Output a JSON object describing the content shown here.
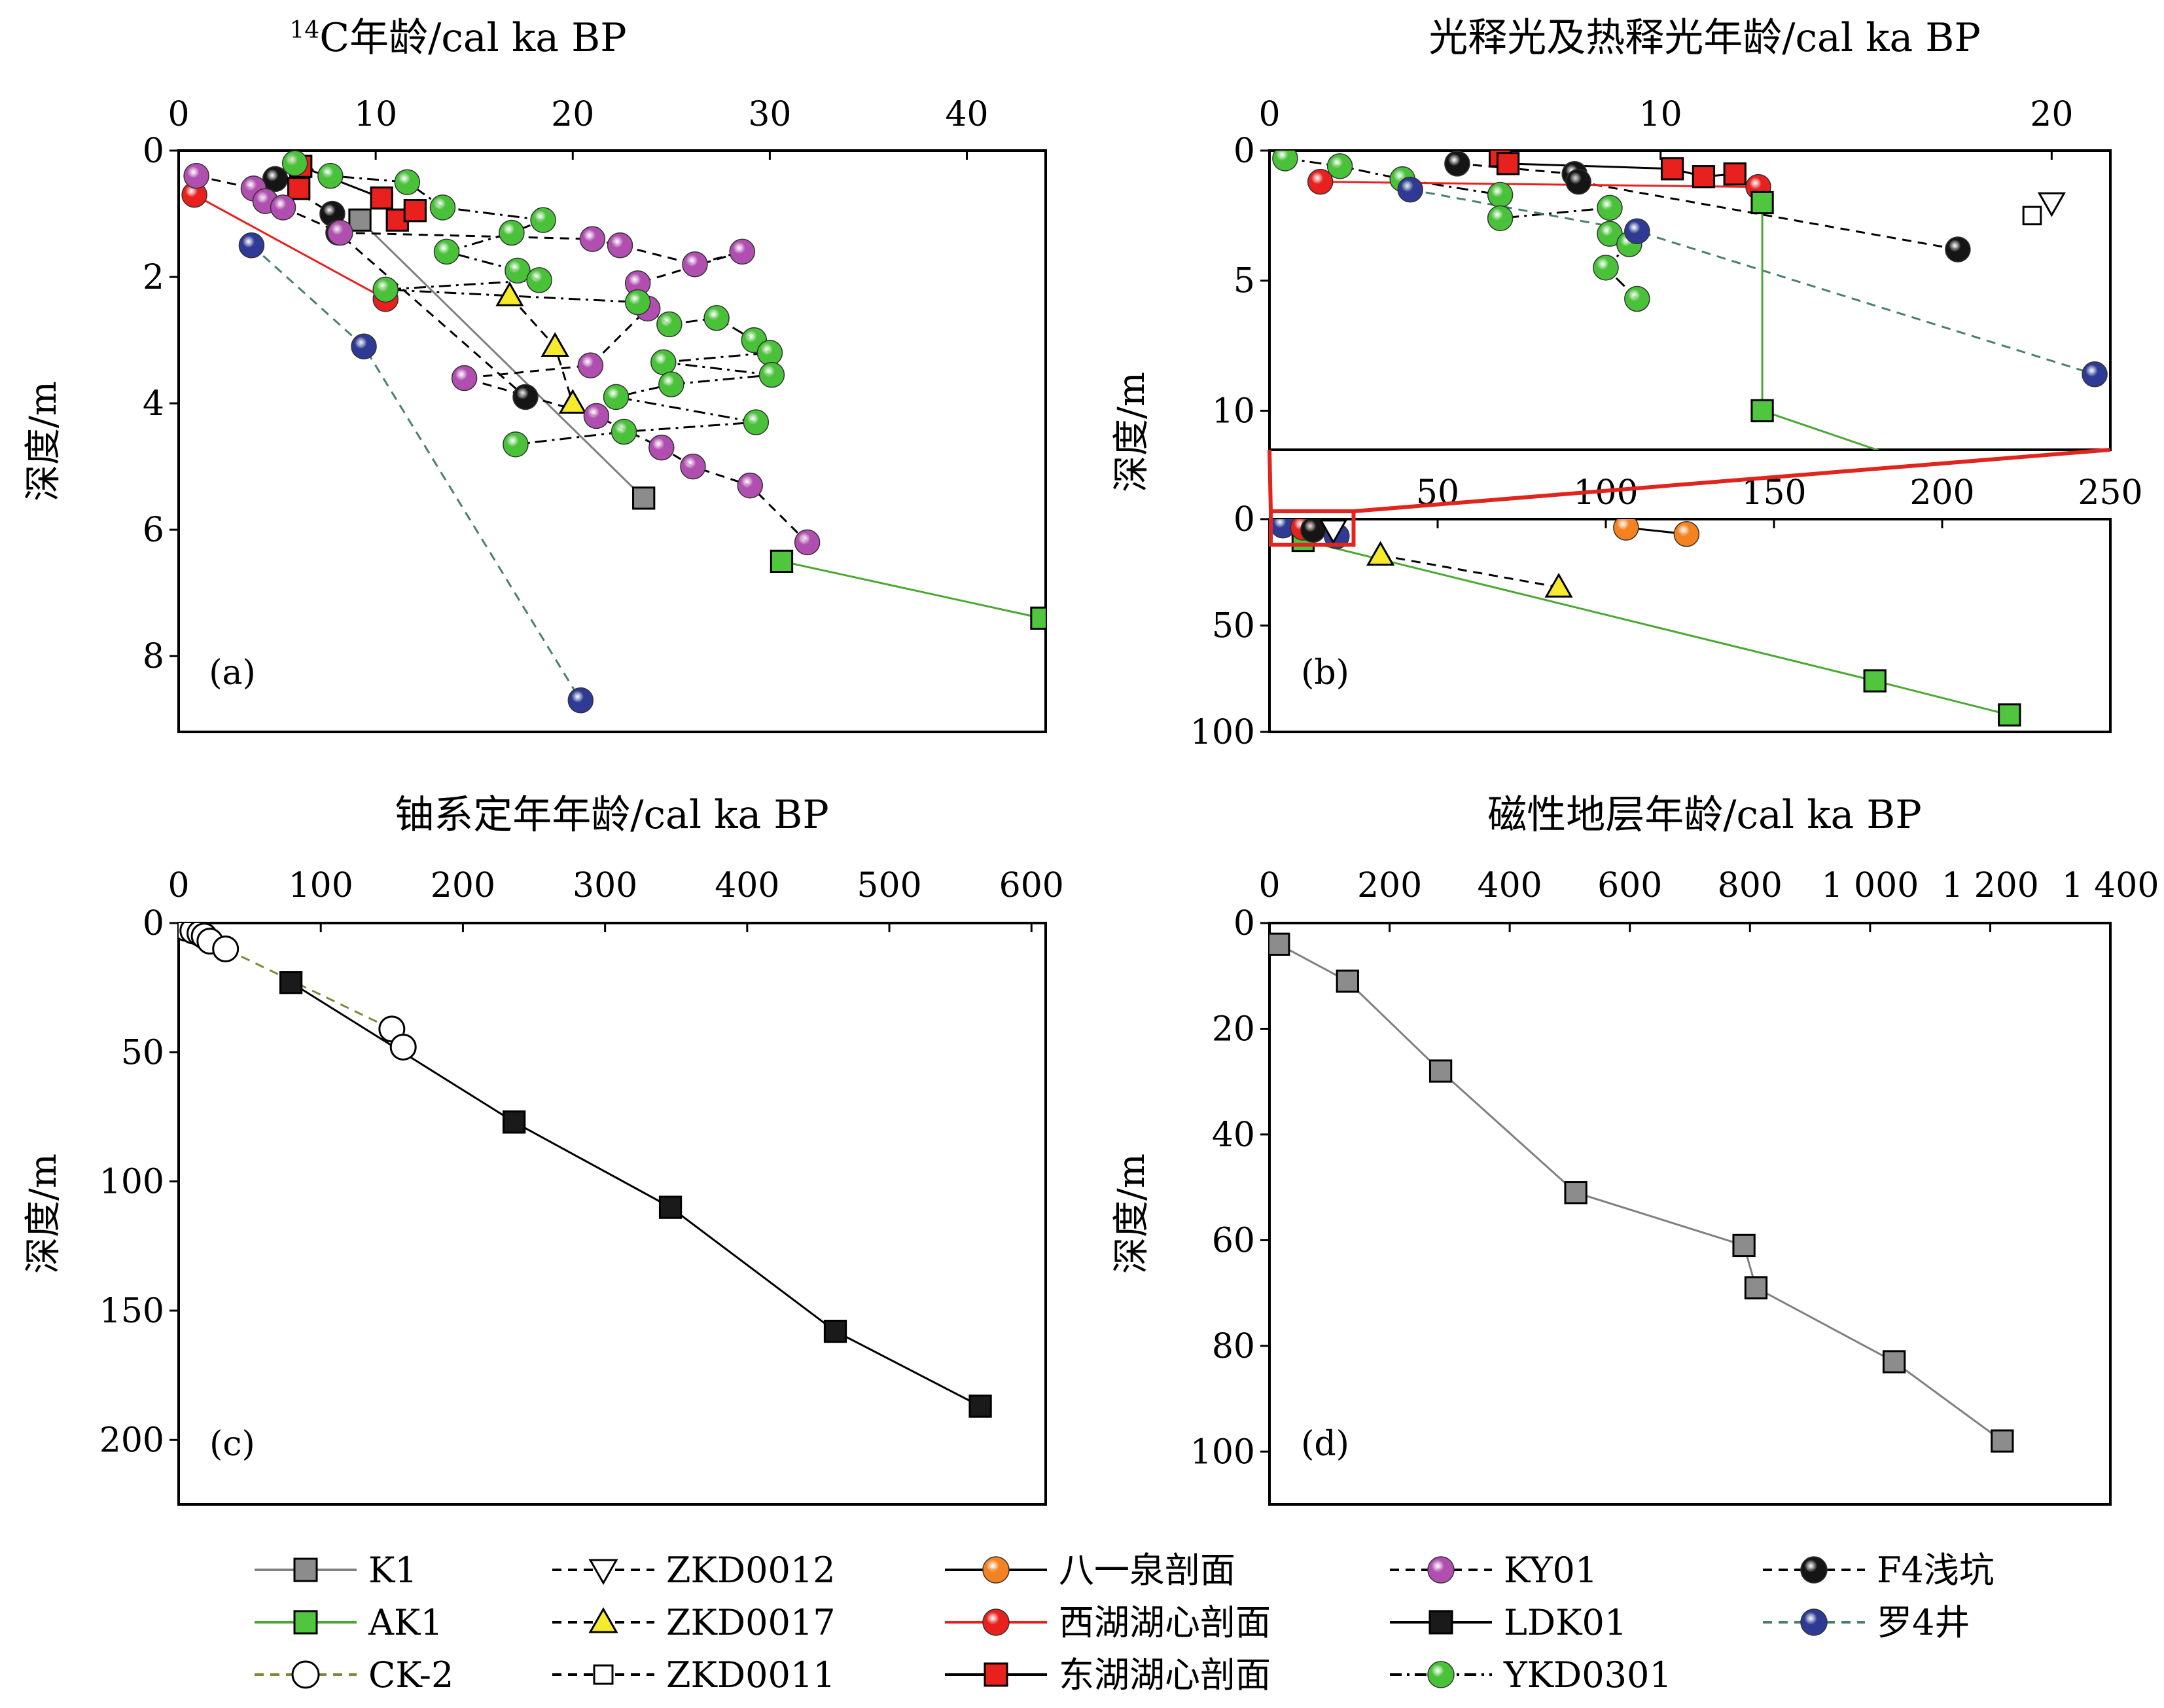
{
  "chart_data": [
    {
      "id": "a",
      "type": "scatter",
      "title_sup": "14",
      "title": "C年龄/cal ka BP",
      "ylabel": "深度/m",
      "panel_label": "(a)",
      "xlim": [
        0,
        44
      ],
      "ylim": [
        0,
        9.2
      ],
      "xticks": [
        "0",
        "10",
        "20",
        "30",
        "40"
      ],
      "xtick_values": [
        0,
        10,
        20,
        30,
        40
      ],
      "yticks": [
        "0",
        "2",
        "4",
        "6",
        "8"
      ],
      "ytick_values": [
        0,
        2,
        4,
        6,
        8
      ],
      "series": [
        {
          "name": "K1",
          "points": [
            [
              9.2,
              1.1
            ],
            [
              23.6,
              5.5
            ]
          ]
        },
        {
          "name": "AK1",
          "points": [
            [
              30.6,
              6.5
            ],
            [
              43.8,
              7.4
            ]
          ]
        },
        {
          "name": "F4浅坑",
          "points": [
            [
              4.9,
              0.45
            ],
            [
              7.8,
              1.0
            ],
            [
              8.1,
              1.3
            ],
            [
              17.6,
              3.9
            ]
          ]
        },
        {
          "name": "西湖湖心剖面",
          "points": [
            [
              0.8,
              0.7
            ],
            [
              10.5,
              2.35
            ]
          ]
        },
        {
          "name": "东湖湖心剖面",
          "points": [
            [
              6.1,
              0.6
            ],
            [
              6.2,
              0.25
            ],
            [
              10.3,
              0.75
            ],
            [
              11.1,
              1.1
            ],
            [
              12.0,
              0.95
            ]
          ]
        },
        {
          "name": "罗4井",
          "points": [
            [
              3.7,
              1.5
            ],
            [
              9.4,
              3.1
            ],
            [
              20.4,
              8.7
            ]
          ]
        },
        {
          "name": "ZKD0017",
          "points": [
            [
              16.8,
              2.3
            ],
            [
              19.1,
              3.1
            ],
            [
              20.0,
              4.0
            ]
          ]
        },
        {
          "name": "KY01",
          "points": [
            [
              0.9,
              0.4
            ],
            [
              3.8,
              0.6
            ],
            [
              4.4,
              0.8
            ],
            [
              5.3,
              0.9
            ],
            [
              8.2,
              1.3
            ],
            [
              21.0,
              1.4
            ],
            [
              22.4,
              1.5
            ],
            [
              26.2,
              1.8
            ],
            [
              28.6,
              1.6
            ],
            [
              23.3,
              2.1
            ],
            [
              23.8,
              2.5
            ],
            [
              20.9,
              3.4
            ],
            [
              14.5,
              3.6
            ],
            [
              21.2,
              4.2
            ],
            [
              24.5,
              4.7
            ],
            [
              26.1,
              5.0
            ],
            [
              29.0,
              5.3
            ],
            [
              31.9,
              6.2
            ]
          ]
        },
        {
          "name": "YKD0301",
          "points": [
            [
              5.9,
              0.2
            ],
            [
              7.7,
              0.4
            ],
            [
              11.6,
              0.5
            ],
            [
              13.4,
              0.9
            ],
            [
              18.5,
              1.1
            ],
            [
              16.9,
              1.3
            ],
            [
              13.6,
              1.6
            ],
            [
              17.2,
              1.9
            ],
            [
              18.3,
              2.05
            ],
            [
              10.5,
              2.2
            ],
            [
              23.3,
              2.4
            ],
            [
              24.9,
              2.75
            ],
            [
              27.3,
              2.65
            ],
            [
              29.2,
              3.0
            ],
            [
              30.0,
              3.2
            ],
            [
              24.6,
              3.35
            ],
            [
              30.1,
              3.55
            ],
            [
              25.0,
              3.7
            ],
            [
              22.2,
              3.9
            ],
            [
              29.3,
              4.3
            ],
            [
              22.6,
              4.45
            ],
            [
              17.1,
              4.65
            ]
          ]
        }
      ]
    },
    {
      "id": "b-upper",
      "type": "scatter",
      "title": "光释光及热释光年龄/cal ka BP",
      "ylabel": "深度/m",
      "xlim": [
        0,
        21.5
      ],
      "ylim": [
        0,
        11.5
      ],
      "xticks": [
        "0",
        "10",
        "20"
      ],
      "xtick_values": [
        0,
        10,
        20
      ],
      "yticks": [
        "0",
        "5",
        "10"
      ],
      "ytick_values": [
        0,
        5,
        10
      ],
      "series": [
        {
          "name": "YKD0301",
          "points": [
            [
              0.4,
              0.3
            ],
            [
              1.8,
              0.6
            ],
            [
              3.4,
              1.1
            ],
            [
              5.9,
              1.7
            ],
            [
              5.9,
              2.6
            ],
            [
              8.7,
              2.2
            ],
            [
              8.7,
              3.2
            ],
            [
              9.2,
              3.6
            ],
            [
              8.6,
              4.5
            ],
            [
              9.4,
              5.7
            ]
          ]
        },
        {
          "name": "F4浅坑",
          "points": [
            [
              4.8,
              0.5
            ],
            [
              7.8,
              0.9
            ],
            [
              7.9,
              1.2
            ],
            [
              17.6,
              3.8
            ]
          ]
        },
        {
          "name": "东湖湖心剖面",
          "points": [
            [
              5.9,
              0.2
            ],
            [
              6.1,
              0.5
            ],
            [
              10.3,
              0.7
            ],
            [
              11.1,
              1.0
            ],
            [
              11.9,
              0.9
            ]
          ]
        },
        {
          "name": "西湖湖心剖面",
          "points": [
            [
              1.3,
              1.2
            ],
            [
              12.5,
              1.4
            ]
          ]
        },
        {
          "name": "罗4井",
          "points": [
            [
              3.6,
              1.5
            ],
            [
              9.4,
              3.1
            ],
            [
              21.1,
              8.6
            ]
          ]
        },
        {
          "name": "AK1",
          "points": [
            [
              12.6,
              2.0
            ],
            [
              12.6,
              10.0
            ],
            [
              16.5,
              12.0
            ]
          ]
        },
        {
          "name": "ZKD0011",
          "points": [
            [
              19.5,
              2.5
            ]
          ]
        },
        {
          "name": "ZKD0012",
          "points": [
            [
              20.0,
              2.0
            ]
          ]
        }
      ]
    },
    {
      "id": "b-lower",
      "type": "scatter",
      "panel_label": "(b)",
      "xlim": [
        0,
        250
      ],
      "ylim": [
        0,
        100
      ],
      "xticks": [
        "50",
        "100",
        "150",
        "200",
        "250"
      ],
      "xtick_values": [
        50,
        100,
        150,
        200,
        250
      ],
      "yticks": [
        "0",
        "50",
        "100"
      ],
      "ytick_values": [
        0,
        50,
        100
      ],
      "series": [
        {
          "name": "AK1",
          "points": [
            [
              10,
              10
            ],
            [
              180,
              76
            ],
            [
              220,
              92
            ]
          ]
        },
        {
          "name": "ZKD0017",
          "points": [
            [
              33,
              17
            ],
            [
              86,
              32
            ]
          ]
        },
        {
          "name": "八一泉剖面",
          "points": [
            [
              106,
              4
            ],
            [
              124,
              7
            ]
          ]
        },
        {
          "name": "罗4井",
          "points": [
            [
              4,
              3
            ],
            [
              20,
              8
            ]
          ]
        },
        {
          "name": "西湖湖心剖面",
          "points": [
            [
              10,
              4
            ]
          ]
        },
        {
          "name": "F4浅坑",
          "points": [
            [
              13,
              5
            ]
          ]
        },
        {
          "name": "ZKD0012",
          "points": [
            [
              19,
              5
            ]
          ]
        }
      ]
    },
    {
      "id": "c",
      "type": "scatter",
      "title": "铀系定年年龄/cal ka BP",
      "ylabel": "深度/m",
      "panel_label": "(c)",
      "xlim": [
        0,
        610
      ],
      "ylim": [
        0,
        225
      ],
      "xticks": [
        "0",
        "100",
        "200",
        "300",
        "400",
        "500",
        "600"
      ],
      "xtick_values": [
        0,
        100,
        200,
        300,
        400,
        500,
        600
      ],
      "yticks": [
        "0",
        "50",
        "100",
        "150",
        "200"
      ],
      "ytick_values": [
        0,
        50,
        100,
        150,
        200
      ],
      "series": [
        {
          "name": "CK-2",
          "points": [
            [
              5,
              2
            ],
            [
              10,
              3
            ],
            [
              15,
              4
            ],
            [
              18,
              5
            ],
            [
              22,
              7
            ],
            [
              33,
              10
            ],
            [
              150,
              41
            ],
            [
              158,
              48
            ]
          ]
        },
        {
          "name": "LDK01",
          "points": [
            [
              79,
              23
            ],
            [
              236,
              77
            ],
            [
              346,
              110
            ],
            [
              462,
              158
            ],
            [
              564,
              187
            ]
          ]
        }
      ]
    },
    {
      "id": "d",
      "type": "line",
      "title": "磁性地层年龄/cal ka BP",
      "ylabel": "深度/m",
      "panel_label": "(d)",
      "xlim": [
        0,
        1400
      ],
      "ylim": [
        0,
        110
      ],
      "xticks": [
        "0",
        "200",
        "400",
        "600",
        "800",
        "1 000",
        "1 200",
        "1 400"
      ],
      "xtick_values": [
        0,
        200,
        400,
        600,
        800,
        1000,
        1200,
        1400
      ],
      "yticks": [
        "0",
        "20",
        "40",
        "60",
        "80",
        "100"
      ],
      "ytick_values": [
        0,
        20,
        40,
        60,
        80,
        100
      ],
      "series": [
        {
          "name": "K1",
          "points": [
            [
              15,
              4
            ],
            [
              130,
              11
            ],
            [
              285,
              28
            ],
            [
              510,
              51
            ],
            [
              790,
              61
            ],
            [
              810,
              69
            ],
            [
              1040,
              83
            ],
            [
              1220,
              98
            ]
          ]
        }
      ]
    }
  ],
  "legend": [
    {
      "label": "K1",
      "marker": "square",
      "fill": "#8c8c8c",
      "line": "#808080",
      "dash": "solid"
    },
    {
      "label": "ZKD0012",
      "marker": "triangle-down",
      "fill": "#ffffff",
      "line": "#000000",
      "dash": "dashed"
    },
    {
      "label": "八一泉剖面",
      "marker": "sphere",
      "fill": "#f58220",
      "line": "#000000",
      "dash": "solid"
    },
    {
      "label": "KY01",
      "marker": "sphere",
      "fill": "#b04fb0",
      "line": "#000000",
      "dash": "dashed"
    },
    {
      "label": "F4浅坑",
      "marker": "sphere",
      "fill": "#151515",
      "line": "#000000",
      "dash": "dashed"
    },
    {
      "label": "AK1",
      "marker": "square",
      "fill": "#4fc63e",
      "line": "#4aa832",
      "dash": "solid"
    },
    {
      "label": "ZKD0017",
      "marker": "triangle-up",
      "fill": "#f6ea2c",
      "line": "#000000",
      "dash": "dashed"
    },
    {
      "label": "西湖湖心剖面",
      "marker": "sphere",
      "fill": "#e8201e",
      "line": "#e8201e",
      "dash": "solid"
    },
    {
      "label": "LDK01",
      "marker": "square",
      "fill": "#1a1a1a",
      "line": "#000000",
      "dash": "solid"
    },
    {
      "label": "罗4井",
      "marker": "sphere",
      "fill": "#2e3a94",
      "line": "#4a7f6f",
      "dash": "dashed"
    },
    {
      "label": "CK-2",
      "marker": "circle-open",
      "fill": "#ffffff",
      "line": "#7b8a3a",
      "dash": "dashed"
    },
    {
      "label": "ZKD0011",
      "marker": "square-open",
      "fill": "#ffffff",
      "line": "#000000",
      "dash": "dashed"
    },
    {
      "label": "东湖湖心剖面",
      "marker": "square",
      "fill": "#e8201e",
      "line": "#000000",
      "dash": "solid"
    },
    {
      "label": "YKD0301",
      "marker": "sphere",
      "fill": "#49c23a",
      "line": "#000000",
      "dash": "dashdot"
    }
  ]
}
